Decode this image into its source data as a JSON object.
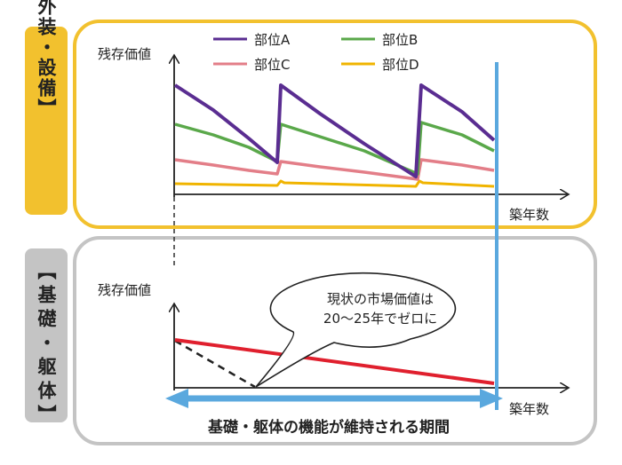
{
  "top_section": {
    "tab_label": "【内外装・設備】",
    "y_label": "残存価値",
    "x_label": "築年数",
    "legend": [
      {
        "label": "部位A",
        "color": "#5a2d91"
      },
      {
        "label": "部位B",
        "color": "#5aa84a"
      },
      {
        "label": "部位C",
        "color": "#e37e88"
      },
      {
        "label": "部位D",
        "color": "#f0b400"
      }
    ]
  },
  "bottom_section": {
    "tab_label": "【基礎・躯体】",
    "y_label": "残存価値",
    "x_label": "築年数",
    "bubble_line1": "現状の市場価値は",
    "bubble_line2": "20～25年でゼロに",
    "period_label": "基礎・躯体の機能が維持される期間"
  },
  "colors": {
    "top_border": "#f2c12e",
    "top_tab": "#f2c12e",
    "bottom_border": "#c4c4c4",
    "bottom_tab": "#c4c4c4",
    "vertical_marker": "#5aa8de",
    "period_arrow": "#5aa8de",
    "structure_value": "#e0202e"
  }
}
